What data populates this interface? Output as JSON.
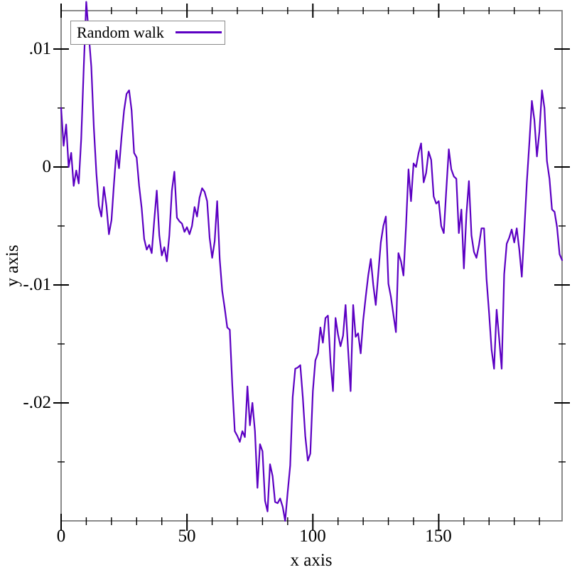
{
  "legend": {
    "label": "Random walk"
  },
  "axes": {
    "x": {
      "title": "x axis",
      "tick_labels": [
        "0",
        "50",
        "100",
        "150"
      ]
    },
    "y": {
      "title": "y axis",
      "tick_labels": [
        ".01",
        "0",
        "-.01",
        "-.02"
      ]
    }
  },
  "colors": {
    "line": "#5c00c3",
    "frame": "#7d7d7d",
    "tick": "#000000",
    "text": "#000000",
    "background": "#ffffff"
  },
  "chart_data": {
    "type": "line",
    "title": "",
    "xlabel": "x axis",
    "ylabel": "y axis",
    "xlim": [
      0,
      199
    ],
    "ylim": [
      -0.03,
      0.013253
    ],
    "grid": false,
    "legend_position": "top-left",
    "x_major_ticks": [
      0,
      50,
      100,
      150
    ],
    "x_minor_ticks": [
      10,
      20,
      30,
      40,
      60,
      70,
      80,
      90,
      110,
      120,
      130,
      140,
      160,
      170,
      180,
      190
    ],
    "y_major_ticks": [
      0.01,
      0,
      -0.01,
      -0.02
    ],
    "y_minor_ticks": [
      0.005,
      -0.005,
      -0.015,
      -0.025
    ],
    "series": [
      {
        "name": "Random walk",
        "color": "#5c00c3",
        "x_start": 0,
        "x_step": 1,
        "values": [
          0.005,
          0.0018,
          0.0036,
          0.0,
          0.0012,
          -0.0016,
          -0.0003,
          -0.0014,
          0.0024,
          0.0085,
          0.014,
          0.0112,
          0.0085,
          0.0033,
          -0.0005,
          -0.0033,
          -0.0042,
          -0.0017,
          -0.0033,
          -0.0057,
          -0.0045,
          -0.0014,
          0.0014,
          -0.0001,
          0.0025,
          0.0048,
          0.0062,
          0.0065,
          0.0048,
          0.0012,
          0.0008,
          -0.0016,
          -0.0035,
          -0.0061,
          -0.007,
          -0.0066,
          -0.0073,
          -0.0045,
          -0.002,
          -0.0058,
          -0.0075,
          -0.0068,
          -0.008,
          -0.0058,
          -0.002,
          -0.0004,
          -0.0043,
          -0.0046,
          -0.0048,
          -0.0055,
          -0.0051,
          -0.0057,
          -0.005,
          -0.0034,
          -0.0042,
          -0.0026,
          -0.0018,
          -0.0021,
          -0.0029,
          -0.006,
          -0.0077,
          -0.0063,
          -0.0029,
          -0.0078,
          -0.0105,
          -0.012,
          -0.0136,
          -0.0138,
          -0.0185,
          -0.0224,
          -0.0228,
          -0.0233,
          -0.0224,
          -0.0229,
          -0.0186,
          -0.0219,
          -0.02,
          -0.0224,
          -0.0272,
          -0.0235,
          -0.0241,
          -0.0283,
          -0.0292,
          -0.0252,
          -0.0262,
          -0.0284,
          -0.0285,
          -0.0281,
          -0.0288,
          -0.03,
          -0.0276,
          -0.0253,
          -0.0195,
          -0.0171,
          -0.017,
          -0.0168,
          -0.0195,
          -0.0228,
          -0.0249,
          -0.0243,
          -0.019,
          -0.0164,
          -0.0158,
          -0.0136,
          -0.0149,
          -0.0128,
          -0.0126,
          -0.0165,
          -0.019,
          -0.0128,
          -0.0142,
          -0.0152,
          -0.0143,
          -0.0117,
          -0.0155,
          -0.019,
          -0.0117,
          -0.0144,
          -0.0141,
          -0.0158,
          -0.013,
          -0.011,
          -0.0092,
          -0.0078,
          -0.01,
          -0.0117,
          -0.009,
          -0.0064,
          -0.005,
          -0.0042,
          -0.0099,
          -0.011,
          -0.0125,
          -0.014,
          -0.0073,
          -0.008,
          -0.0092,
          -0.005,
          -0.0002,
          -0.0029,
          0.0003,
          0.0,
          0.0012,
          0.002,
          -0.0013,
          -0.0005,
          0.0013,
          0.0006,
          -0.0025,
          -0.0031,
          -0.0029,
          -0.005,
          -0.0056,
          -0.002,
          0.0015,
          -0.0002,
          -0.0008,
          -0.001,
          -0.0056,
          -0.0036,
          -0.0086,
          -0.004,
          -0.0012,
          -0.0058,
          -0.0072,
          -0.0077,
          -0.0066,
          -0.0052,
          -0.0052,
          -0.0095,
          -0.0124,
          -0.0155,
          -0.0171,
          -0.0121,
          -0.0145,
          -0.0171,
          -0.0091,
          -0.0065,
          -0.006,
          -0.0053,
          -0.0064,
          -0.0052,
          -0.007,
          -0.0093,
          -0.0053,
          -0.0013,
          0.002,
          0.0056,
          0.004,
          0.0009,
          0.003,
          0.0065,
          0.005,
          0.0005,
          -0.001,
          -0.0036,
          -0.0038,
          -0.0051,
          -0.0074,
          -0.0079
        ]
      }
    ]
  }
}
